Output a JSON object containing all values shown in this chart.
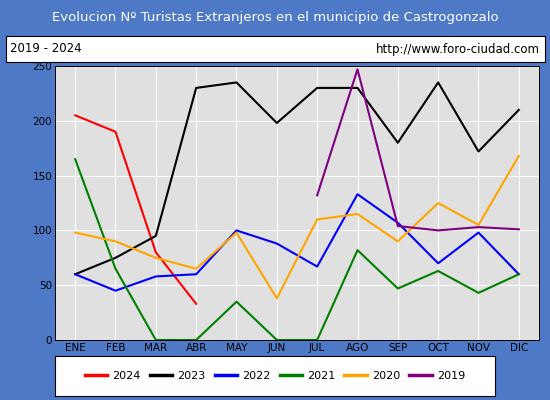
{
  "title": "Evolucion Nº Turistas Extranjeros en el municipio de Castrogonzalo",
  "subtitle_left": "2019 - 2024",
  "subtitle_right": "http://www.foro-ciudad.com",
  "title_bg_color": "#4d79c7",
  "title_text_color": "white",
  "outer_bg_color": "#4d79c7",
  "plot_bg_color": "#e0e0e0",
  "months": [
    "ENE",
    "FEB",
    "MAR",
    "ABR",
    "MAY",
    "JUN",
    "JUL",
    "AGO",
    "SEP",
    "OCT",
    "NOV",
    "DIC"
  ],
  "series": {
    "2024": {
      "color": "red",
      "data": [
        205,
        190,
        80,
        33,
        null,
        null,
        null,
        null,
        null,
        null,
        null,
        null
      ]
    },
    "2023": {
      "color": "black",
      "data": [
        60,
        75,
        95,
        230,
        235,
        198,
        230,
        230,
        180,
        235,
        172,
        210
      ]
    },
    "2022": {
      "color": "blue",
      "data": [
        60,
        45,
        58,
        60,
        100,
        88,
        67,
        133,
        107,
        70,
        98,
        60
      ]
    },
    "2021": {
      "color": "green",
      "data": [
        165,
        65,
        0,
        0,
        35,
        0,
        0,
        82,
        47,
        63,
        43,
        60
      ]
    },
    "2020": {
      "color": "orange",
      "data": [
        98,
        90,
        75,
        65,
        98,
        38,
        110,
        115,
        90,
        125,
        105,
        168
      ]
    },
    "2019": {
      "color": "purple",
      "data": [
        null,
        null,
        null,
        null,
        null,
        null,
        132,
        247,
        104,
        100,
        103,
        101
      ]
    }
  },
  "ylim": [
    0,
    250
  ],
  "yticks": [
    0,
    50,
    100,
    150,
    200,
    250
  ],
  "legend_order": [
    "2024",
    "2023",
    "2022",
    "2021",
    "2020",
    "2019"
  ],
  "title_fontsize": 9.5,
  "tick_fontsize": 7.5,
  "legend_fontsize": 8
}
